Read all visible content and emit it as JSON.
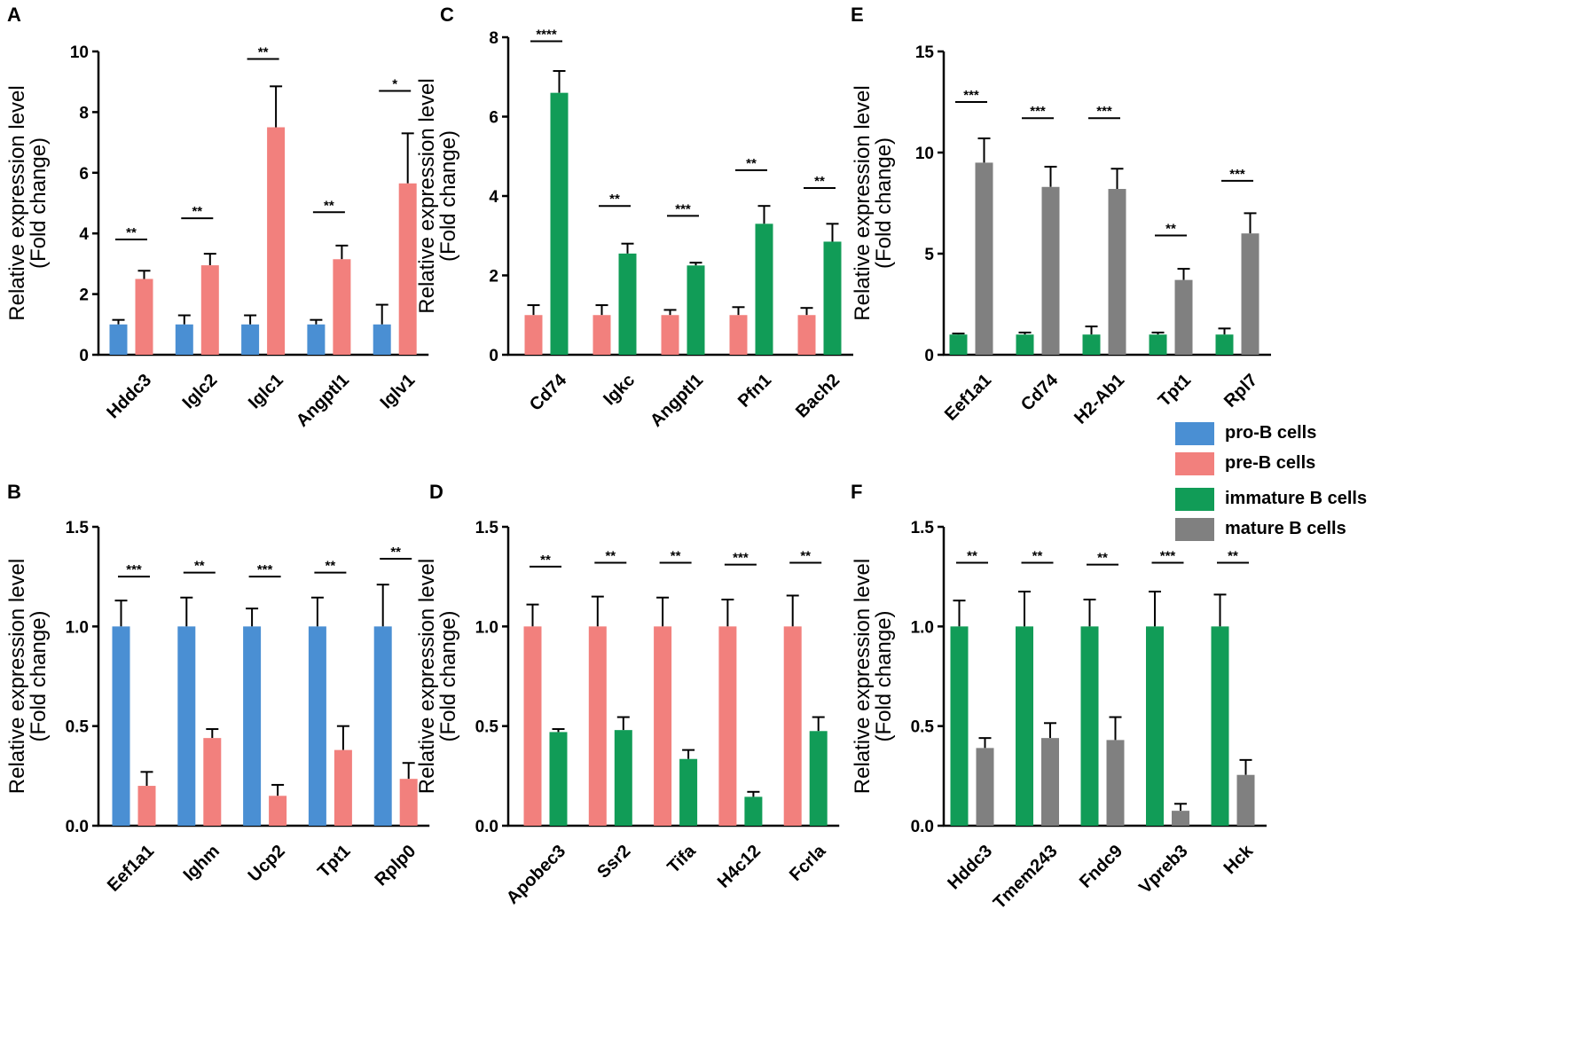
{
  "colors": {
    "pro_b": "#4A8FD3",
    "pre_b": "#F2807D",
    "immature_b": "#119C57",
    "mature_b": "#808080",
    "axis": "#000000"
  },
  "legend": [
    {
      "label": "pro-B cells",
      "color": "#4A8FD3"
    },
    {
      "label": "pre-B cells",
      "color": "#F2807D"
    },
    {
      "label": "immature B cells",
      "color": "#119C57"
    },
    {
      "label": "mature B cells",
      "color": "#808080"
    }
  ],
  "chart_data": [
    {
      "panel": "A",
      "type": "bar",
      "ylabel_line1": "Relative expression level",
      "ylabel_line2": "(Fold change)",
      "ylim": [
        0,
        10
      ],
      "yticks": [
        "0",
        "2",
        "4",
        "6",
        "8",
        "10"
      ],
      "ytick_values": [
        0,
        2,
        4,
        6,
        8,
        10
      ],
      "categories": [
        "Hddc3",
        "Iglc2",
        "Iglc1",
        "Angptl1",
        "Iglv1"
      ],
      "series": [
        {
          "name": "pro-B cells",
          "color": "#4A8FD3",
          "values": [
            1.0,
            1.0,
            1.0,
            1.0,
            1.0
          ],
          "errors": [
            0.15,
            0.3,
            0.3,
            0.15,
            0.65
          ]
        },
        {
          "name": "pre-B cells",
          "color": "#F2807D",
          "values": [
            2.5,
            2.95,
            7.5,
            3.15,
            5.65
          ],
          "errors": [
            0.27,
            0.38,
            1.35,
            0.45,
            1.65
          ]
        }
      ],
      "significance": [
        "**",
        "**",
        "**",
        "**",
        "*"
      ],
      "sig_levels": [
        3.8,
        4.5,
        9.75,
        4.7,
        8.7
      ]
    },
    {
      "panel": "B",
      "type": "bar",
      "ylabel_line1": "Relative expression level",
      "ylabel_line2": "(Fold change)",
      "ylim": [
        0,
        1.5
      ],
      "yticks": [
        "0.0",
        "0.5",
        "1.0",
        "1.5"
      ],
      "ytick_values": [
        0,
        0.5,
        1.0,
        1.5
      ],
      "categories": [
        "Eef1a1",
        "Ighm",
        "Ucp2",
        "Tpt1",
        "Rplp0"
      ],
      "series": [
        {
          "name": "pro-B cells",
          "color": "#4A8FD3",
          "values": [
            1.0,
            1.0,
            1.0,
            1.0,
            1.0
          ],
          "errors": [
            0.13,
            0.145,
            0.09,
            0.145,
            0.21
          ]
        },
        {
          "name": "pre-B cells",
          "color": "#F2807D",
          "values": [
            0.2,
            0.44,
            0.15,
            0.38,
            0.235
          ],
          "errors": [
            0.07,
            0.045,
            0.055,
            0.12,
            0.08
          ]
        }
      ],
      "significance": [
        "***",
        "**",
        "***",
        "**",
        "**"
      ],
      "sig_levels": [
        1.25,
        1.27,
        1.25,
        1.27,
        1.34
      ]
    },
    {
      "panel": "C",
      "type": "bar",
      "ylabel_line1": "Relative expression level",
      "ylabel_line2": "(Fold change)",
      "ylim": [
        0,
        8
      ],
      "yticks": [
        "0",
        "2",
        "4",
        "6",
        "8"
      ],
      "ytick_values": [
        0,
        2,
        4,
        6,
        8
      ],
      "categories": [
        "Cd74",
        "Igkc",
        "Angptl1",
        "Pfn1",
        "Bach2"
      ],
      "series": [
        {
          "name": "pre-B cells",
          "color": "#F2807D",
          "values": [
            1.0,
            1.0,
            1.0,
            1.0,
            1.0
          ],
          "errors": [
            0.25,
            0.25,
            0.13,
            0.2,
            0.18
          ]
        },
        {
          "name": "immature B cells",
          "color": "#119C57",
          "values": [
            6.6,
            2.55,
            2.25,
            3.3,
            2.85
          ],
          "errors": [
            0.55,
            0.25,
            0.07,
            0.45,
            0.45
          ]
        }
      ],
      "significance": [
        "****",
        "**",
        "***",
        "**",
        "**"
      ],
      "sig_levels": [
        7.9,
        3.75,
        3.5,
        4.65,
        4.2
      ]
    },
    {
      "panel": "D",
      "type": "bar",
      "ylabel_line1": "Relative expression level",
      "ylabel_line2": "(Fold change)",
      "ylim": [
        0,
        1.5
      ],
      "yticks": [
        "0.0",
        "0.5",
        "1.0",
        "1.5"
      ],
      "ytick_values": [
        0,
        0.5,
        1.0,
        1.5
      ],
      "categories": [
        "Apobec3",
        "Ssr2",
        "Tifa",
        "H4c12",
        "Fcrla"
      ],
      "series": [
        {
          "name": "pre-B cells",
          "color": "#F2807D",
          "values": [
            1.0,
            1.0,
            1.0,
            1.0,
            1.0
          ],
          "errors": [
            0.11,
            0.15,
            0.145,
            0.135,
            0.155
          ]
        },
        {
          "name": "immature B cells",
          "color": "#119C57",
          "values": [
            0.47,
            0.48,
            0.335,
            0.145,
            0.475
          ],
          "errors": [
            0.015,
            0.065,
            0.045,
            0.025,
            0.07
          ]
        }
      ],
      "significance": [
        "**",
        "**",
        "**",
        "***",
        "**"
      ],
      "sig_levels": [
        1.3,
        1.32,
        1.32,
        1.31,
        1.32
      ]
    },
    {
      "panel": "E",
      "type": "bar",
      "ylabel_line1": "Relative expression level",
      "ylabel_line2": "(Fold change)",
      "ylim": [
        0,
        15
      ],
      "yticks": [
        "0",
        "5",
        "10",
        "15"
      ],
      "ytick_values": [
        0,
        5,
        10,
        15
      ],
      "categories": [
        "Eef1a1",
        "Cd74",
        "H2-Ab1",
        "Tpt1",
        "Rpl7"
      ],
      "series": [
        {
          "name": "immature B cells",
          "color": "#119C57",
          "values": [
            1.0,
            1.0,
            1.0,
            1.0,
            1.0
          ],
          "errors": [
            0.05,
            0.1,
            0.4,
            0.1,
            0.3
          ]
        },
        {
          "name": "mature B cells",
          "color": "#808080",
          "values": [
            9.5,
            8.3,
            8.2,
            3.7,
            6.0
          ],
          "errors": [
            1.2,
            1.0,
            1.0,
            0.55,
            1.0
          ]
        }
      ],
      "significance": [
        "***",
        "***",
        "***",
        "**",
        "***"
      ],
      "sig_levels": [
        12.5,
        11.7,
        11.7,
        5.9,
        8.6
      ]
    },
    {
      "panel": "F",
      "type": "bar",
      "ylabel_line1": "Relative expression level",
      "ylabel_line2": "(Fold change)",
      "ylim": [
        0,
        1.5
      ],
      "yticks": [
        "0.0",
        "0.5",
        "1.0",
        "1.5"
      ],
      "ytick_values": [
        0,
        0.5,
        1.0,
        1.5
      ],
      "categories": [
        "Hddc3",
        "Tmem243",
        "Fndc9",
        "Vpreb3",
        "Hck"
      ],
      "series": [
        {
          "name": "immature B cells",
          "color": "#119C57",
          "values": [
            1.0,
            1.0,
            1.0,
            1.0,
            1.0
          ],
          "errors": [
            0.13,
            0.175,
            0.135,
            0.175,
            0.16
          ]
        },
        {
          "name": "mature B cells",
          "color": "#808080",
          "values": [
            0.39,
            0.44,
            0.43,
            0.075,
            0.255
          ],
          "errors": [
            0.05,
            0.075,
            0.115,
            0.035,
            0.075
          ]
        }
      ],
      "significance": [
        "**",
        "**",
        "**",
        "***",
        "**"
      ],
      "sig_levels": [
        1.32,
        1.32,
        1.31,
        1.32,
        1.32
      ]
    }
  ]
}
